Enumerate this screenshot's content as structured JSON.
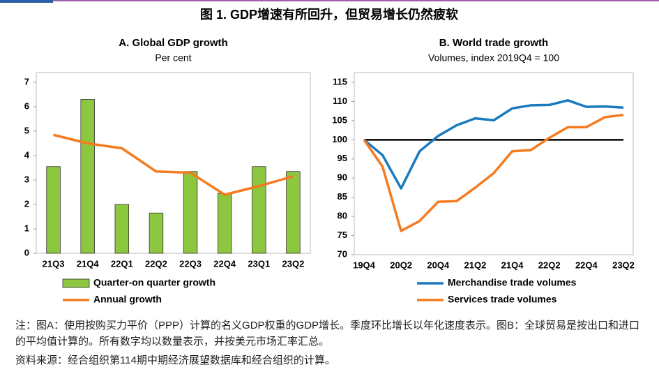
{
  "header": {
    "title": "图 1. GDP增速有所回升，但贸易增长仍然疲软"
  },
  "chart_data": [
    {
      "type": "bar",
      "title": "A. Global GDP growth",
      "subtitle": "Per cent",
      "categories": [
        "21Q3",
        "21Q4",
        "22Q1",
        "22Q2",
        "22Q3",
        "22Q4",
        "23Q1",
        "23Q2"
      ],
      "series": [
        {
          "name": "Quarter-on quarter growth",
          "type": "bar",
          "color": "#8dc63f",
          "values": [
            3.55,
            6.3,
            2.0,
            1.65,
            3.35,
            2.45,
            3.55,
            3.35
          ]
        },
        {
          "name": "Annual growth",
          "type": "line",
          "color": "#f47b20",
          "values": [
            4.85,
            4.5,
            4.3,
            3.35,
            3.3,
            2.4,
            2.75,
            3.15
          ]
        }
      ],
      "ylim": [
        0,
        7
      ],
      "yticks": [
        0,
        1,
        2,
        3,
        4,
        5,
        6,
        7
      ],
      "grid": false
    },
    {
      "type": "line",
      "title": "B. World trade growth",
      "subtitle": "Volumes, index 2019Q4 = 100",
      "categories": [
        "19Q4",
        null,
        "20Q2",
        null,
        "20Q4",
        null,
        "21Q2",
        null,
        "21Q4",
        null,
        "22Q2",
        null,
        "22Q4",
        null,
        "23Q2"
      ],
      "series": [
        {
          "name": "Merchandise trade volumes",
          "type": "line",
          "color": "#1a7abf",
          "values": [
            100,
            96,
            87.3,
            97,
            101,
            103.8,
            105.6,
            105.1,
            108.2,
            109,
            109.1,
            110.3,
            108.6,
            108.7,
            108.4
          ]
        },
        {
          "name": "Services trade volumes",
          "type": "line",
          "color": "#f47b20",
          "values": [
            100,
            93,
            76.2,
            78.8,
            83.8,
            84,
            87.5,
            91.3,
            97,
            97.3,
            100.5,
            103.3,
            103.3,
            105.9,
            106.5
          ]
        }
      ],
      "hline": 100,
      "ylim": [
        70,
        115
      ],
      "yticks": [
        70,
        75,
        80,
        85,
        90,
        95,
        100,
        105,
        110,
        115
      ],
      "grid": false
    }
  ],
  "notes": [
    "注：图A：使用按购买力平价（PPP）计算的名义GDP权重的GDP增长。季度环比增长以年化速度表示。图B：全球贸易是按出口和进口的平均值计算的。所有数字均以数量表示，并按美元市场汇率汇总。",
    "资料来源：经合组织第114期中期经济展望数据库和经合组织的计算。"
  ]
}
